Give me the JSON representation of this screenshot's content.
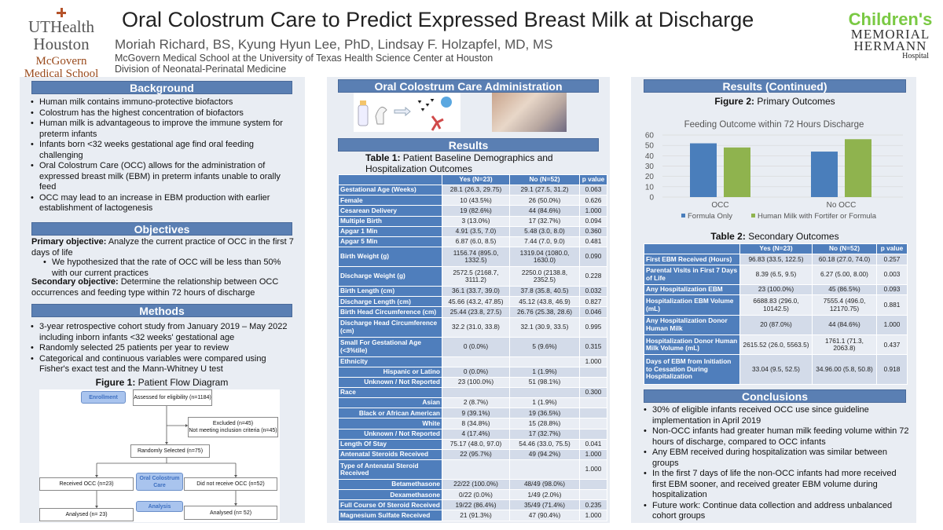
{
  "header": {
    "title": "Oral Colostrum Care to Predict Expressed Breast Milk at Discharge",
    "authors": "Moriah Richard, BS, Kyung Hyun Lee, PhD, Lindsay F. Holzapfel, MD, MS",
    "affiliation1": "McGovern Medical School at the University of Texas Health Science Center at Houston",
    "affiliation2": "Division of Neonatal-Perinatal Medicine",
    "logo_left": {
      "line1": "UTHealth",
      "line2": "Houston",
      "line3": "McGovern",
      "line4": "Medical School"
    },
    "logo_right": {
      "line1": "Children's",
      "line2": "MEMORIAL",
      "line3": "HERMANN",
      "line4": "Hospital"
    }
  },
  "background": {
    "heading": "Background",
    "bullets": [
      "Human milk contains immuno-protective biofactors",
      "Colostrum has the highest concentration of biofactors",
      "Human milk is advantageous to improve the immune system for preterm infants",
      "Infants born <32 weeks gestational age find oral feeding challenging",
      "Oral Colostrum Care (OCC) allows for the administration of expressed breast milk (EBM) in preterm infants unable to orally feed",
      "OCC may lead to an increase in EBM production with earlier establishment of lactogenesis"
    ]
  },
  "objectives": {
    "heading": "Objectives",
    "primary_label": "Primary objective:",
    "primary_text": " Analyze the current practice of OCC in the first 7 days of life",
    "hypothesis": "We hypothesized that the rate of OCC will be less than 50% with our current practices",
    "secondary_label": "Secondary objective:",
    "secondary_text": " Determine the relationship between OCC occurrences and feeding type within 72 hours of discharge"
  },
  "methods": {
    "heading": "Methods",
    "bullets": [
      "3-year retrospective cohort study from January 2019 – May 2022 including inborn infants <32 weeks' gestational age",
      "Randomly selected 25 patients per year to review",
      "Categorical and continuous variables were compared using Fisher's exact test and the Mann-Whitney U test"
    ],
    "figure_label": "Figure 1:",
    "figure_title": " Patient Flow Diagram",
    "flow": {
      "enrollment": "Enrollment",
      "assessed": "Assessed for eligibility (n=1184)",
      "excluded1": "Excluded (n=45)",
      "excluded2": "Not meeting inclusion criteria (n=45)",
      "randomly": "Randomly Selected (n=75)",
      "received": "Received OCC (n=23)",
      "occ": "Oral Colostrum Care",
      "not_received": "Did not receive OCC (n=52)",
      "analysis": "Analysis",
      "analysed_left": "Analysed (n= 23)",
      "analysed_right": "Analysed (n= 52)"
    }
  },
  "administration": {
    "heading": "Oral Colostrum Care Administration"
  },
  "results": {
    "heading": "Results",
    "table1_label": "Table 1:",
    "table1_title": " Patient Baseline Demographics and Hospitalization Outcomes",
    "table1": {
      "columns": [
        "",
        "Yes (N=23)",
        "No (N=52)",
        "p value"
      ],
      "rows": [
        [
          "Gestational Age (Weeks)",
          "28.1 (26.3, 29.75)",
          "29.1 (27.5, 31.2)",
          "0.063"
        ],
        [
          "Female",
          "10 (43.5%)",
          "26 (50.0%)",
          "0.626"
        ],
        [
          "Cesarean Delivery",
          "19 (82.6%)",
          "44 (84.6%)",
          "1.000"
        ],
        [
          "Multiple Birth",
          "3 (13.0%)",
          "17 (32.7%)",
          "0.094"
        ],
        [
          "Apgar 1 Min",
          "4.91 (3.5, 7.0)",
          "5.48 (3.0, 8.0)",
          "0.360"
        ],
        [
          "Apgar 5 Min",
          "6.87 (6.0, 8.5)",
          "7.44 (7.0, 9.0)",
          "0.481"
        ],
        [
          "Birth Weight (g)",
          "1156.74 (895.0, 1332.5)",
          "1319.04 (1080.0, 1630.0)",
          "0.090"
        ],
        [
          "Discharge Weight (g)",
          "2572.5 (2168.7, 3111.2)",
          "2250.0 (2138.8, 2352.5)",
          "0.228"
        ],
        [
          "Birth Length (cm)",
          "36.1 (33.7, 39.0)",
          "37.8 (35.8, 40.5)",
          "0.032"
        ],
        [
          "Discharge Length (cm)",
          "45.66 (43.2, 47.85)",
          "45.12 (43.8, 46.9)",
          "0.827"
        ],
        [
          "Birth Head Circumference (cm)",
          "25.44 (23.8, 27.5)",
          "26.76 (25.38, 28.6)",
          "0.046"
        ],
        [
          "Discharge Head Circumference (cm)",
          "32.2 (31.0, 33.8)",
          "32.1 (30.9, 33.5)",
          "0.995"
        ],
        [
          "Small For Gestational Age (<3%tile)",
          "0 (0.0%)",
          "5 (9.6%)",
          "0.315"
        ],
        [
          "Ethnicity",
          "",
          "",
          "1.000"
        ],
        [
          "Hispanic or Latino",
          "0 (0.0%)",
          "1 (1.9%)",
          ""
        ],
        [
          "Unknown / Not Reported",
          "23 (100.0%)",
          "51 (98.1%)",
          ""
        ],
        [
          "Race",
          "",
          "",
          "0.300"
        ],
        [
          "Asian",
          "2 (8.7%)",
          "1 (1.9%)",
          ""
        ],
        [
          "Black or African American",
          "9 (39.1%)",
          "19 (36.5%)",
          ""
        ],
        [
          "White",
          "8 (34.8%)",
          "15 (28.8%)",
          ""
        ],
        [
          "Unknown / Not Reported",
          "4 (17.4%)",
          "17 (32.7%)",
          ""
        ],
        [
          "Length Of Stay",
          "75.17 (48.0, 97.0)",
          "54.46 (33.0, 75.5)",
          "0.041"
        ],
        [
          "Antenatal Steroids Received",
          "22 (95.7%)",
          "49 (94.2%)",
          "1.000"
        ],
        [
          "Type of Antenatal Steroid Received",
          "",
          "",
          "1.000"
        ],
        [
          "Betamethasone",
          "22/22 (100.0%)",
          "48/49 (98.0%)",
          ""
        ],
        [
          "Dexamethasone",
          "0/22 (0.0%)",
          "1/49 (2.0%)",
          ""
        ],
        [
          "Full Course Of Steroid Received",
          "19/22 (86.4%)",
          "35/49 (71.4%)",
          "0.235"
        ],
        [
          "Magnesium Sulfate Received",
          "21 (91.3%)",
          "47 (90.4%)",
          "1.000"
        ]
      ]
    }
  },
  "results_continued": {
    "heading": "Results (Continued)",
    "figure_label": "Figure 2:",
    "figure_title": " Primary Outcomes",
    "table2_label": "Table 2:",
    "table2_title": " Secondary Outcomes",
    "table2": {
      "columns": [
        "",
        "Yes (N=23)",
        "No (N=52)",
        "p value"
      ],
      "rows": [
        [
          "First EBM Received (Hours)",
          "96.83 (33.5, 122.5)",
          "60.18 (27.0, 74.0)",
          "0.257"
        ],
        [
          "Parental Visits in First 7 Days of Life",
          "8.39 (6.5, 9.5)",
          "6.27 (5.00, 8.00)",
          "0.003"
        ],
        [
          "Any Hospitalization EBM",
          "23 (100.0%)",
          "45 (86.5%)",
          "0.093"
        ],
        [
          "Hospitalization EBM Volume (mL)",
          "6688.83 (296.0, 10142.5)",
          "7555.4 (496.0, 12170.75)",
          "0.881"
        ],
        [
          "Any Hospitalization Donor Human Milk",
          "20 (87.0%)",
          "44 (84.6%)",
          "1.000"
        ],
        [
          "Hospitalization Donor Human Milk Volume (mL)",
          "2615.52 (26.0, 5563.5)",
          "1761.1 (71.3, 2063.8)",
          "0.437"
        ],
        [
          "Days of EBM from Initiation to Cessation During Hospitalization",
          "33.04 (9.5, 52.5)",
          "34.96.00 (5.8, 50.8)",
          "0.918"
        ]
      ]
    }
  },
  "chart_data": {
    "type": "bar",
    "title": "Feeding Outcome within 72 Hours Discharge",
    "categories": [
      "OCC",
      "No OCC"
    ],
    "series": [
      {
        "name": "Formula Only",
        "values": [
          52,
          44
        ],
        "color": "#4a7ebb"
      },
      {
        "name": "Human Milk with Fortifer or Formula",
        "values": [
          48,
          56
        ],
        "color": "#8fb34e"
      }
    ],
    "ylim": [
      0,
      60
    ],
    "yticks": [
      0,
      10,
      20,
      30,
      40,
      50,
      60
    ],
    "grid": true,
    "legend": "bottom"
  },
  "conclusions": {
    "heading": "Conclusions",
    "bullets": [
      "30% of eligible infants received OCC use since guideline implementation in April 2019",
      "Non-OCC infants had greater human milk feeding volume within 72 hours of discharge, compared to OCC infants",
      "Any EBM received during hospitalization was similar between groups",
      "In the first 7 days of life the non-OCC infants had more received first EBM sooner, and received greater EBM volume during hospitalization",
      "Future work: Continue data collection and address unbalanced cohort groups"
    ]
  }
}
